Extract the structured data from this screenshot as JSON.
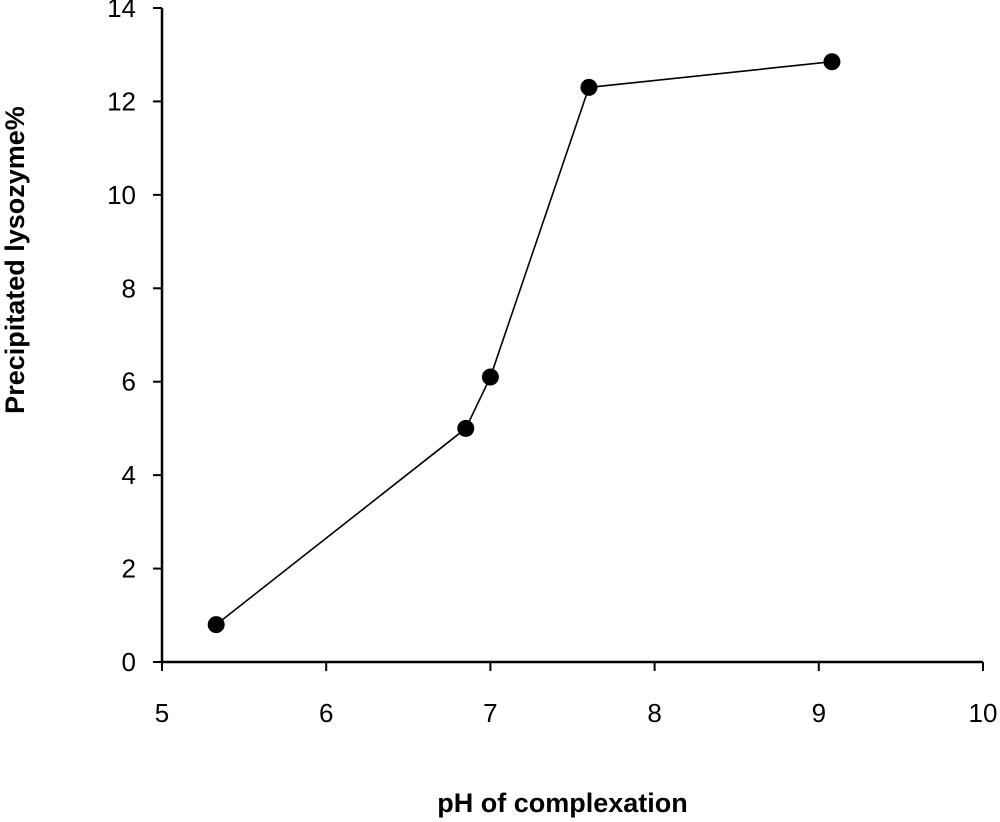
{
  "chart_data": {
    "type": "line",
    "title": "",
    "xlabel": "pH of complexation",
    "ylabel": "Precipitated lysozyme%",
    "xlim": [
      5,
      10
    ],
    "ylim": [
      0,
      14
    ],
    "xticks": [
      "5",
      "6",
      "7",
      "8",
      "9",
      "10"
    ],
    "yticks": [
      "0",
      "2",
      "4",
      "6",
      "8",
      "10",
      "12",
      "14"
    ],
    "grid": false,
    "series": [
      {
        "x": [
          5.33,
          6.85,
          7.0,
          7.6,
          9.08
        ],
        "y": [
          0.8,
          5.0,
          6.1,
          12.3,
          12.85
        ],
        "color": "#000000",
        "marker": "circle"
      }
    ]
  }
}
